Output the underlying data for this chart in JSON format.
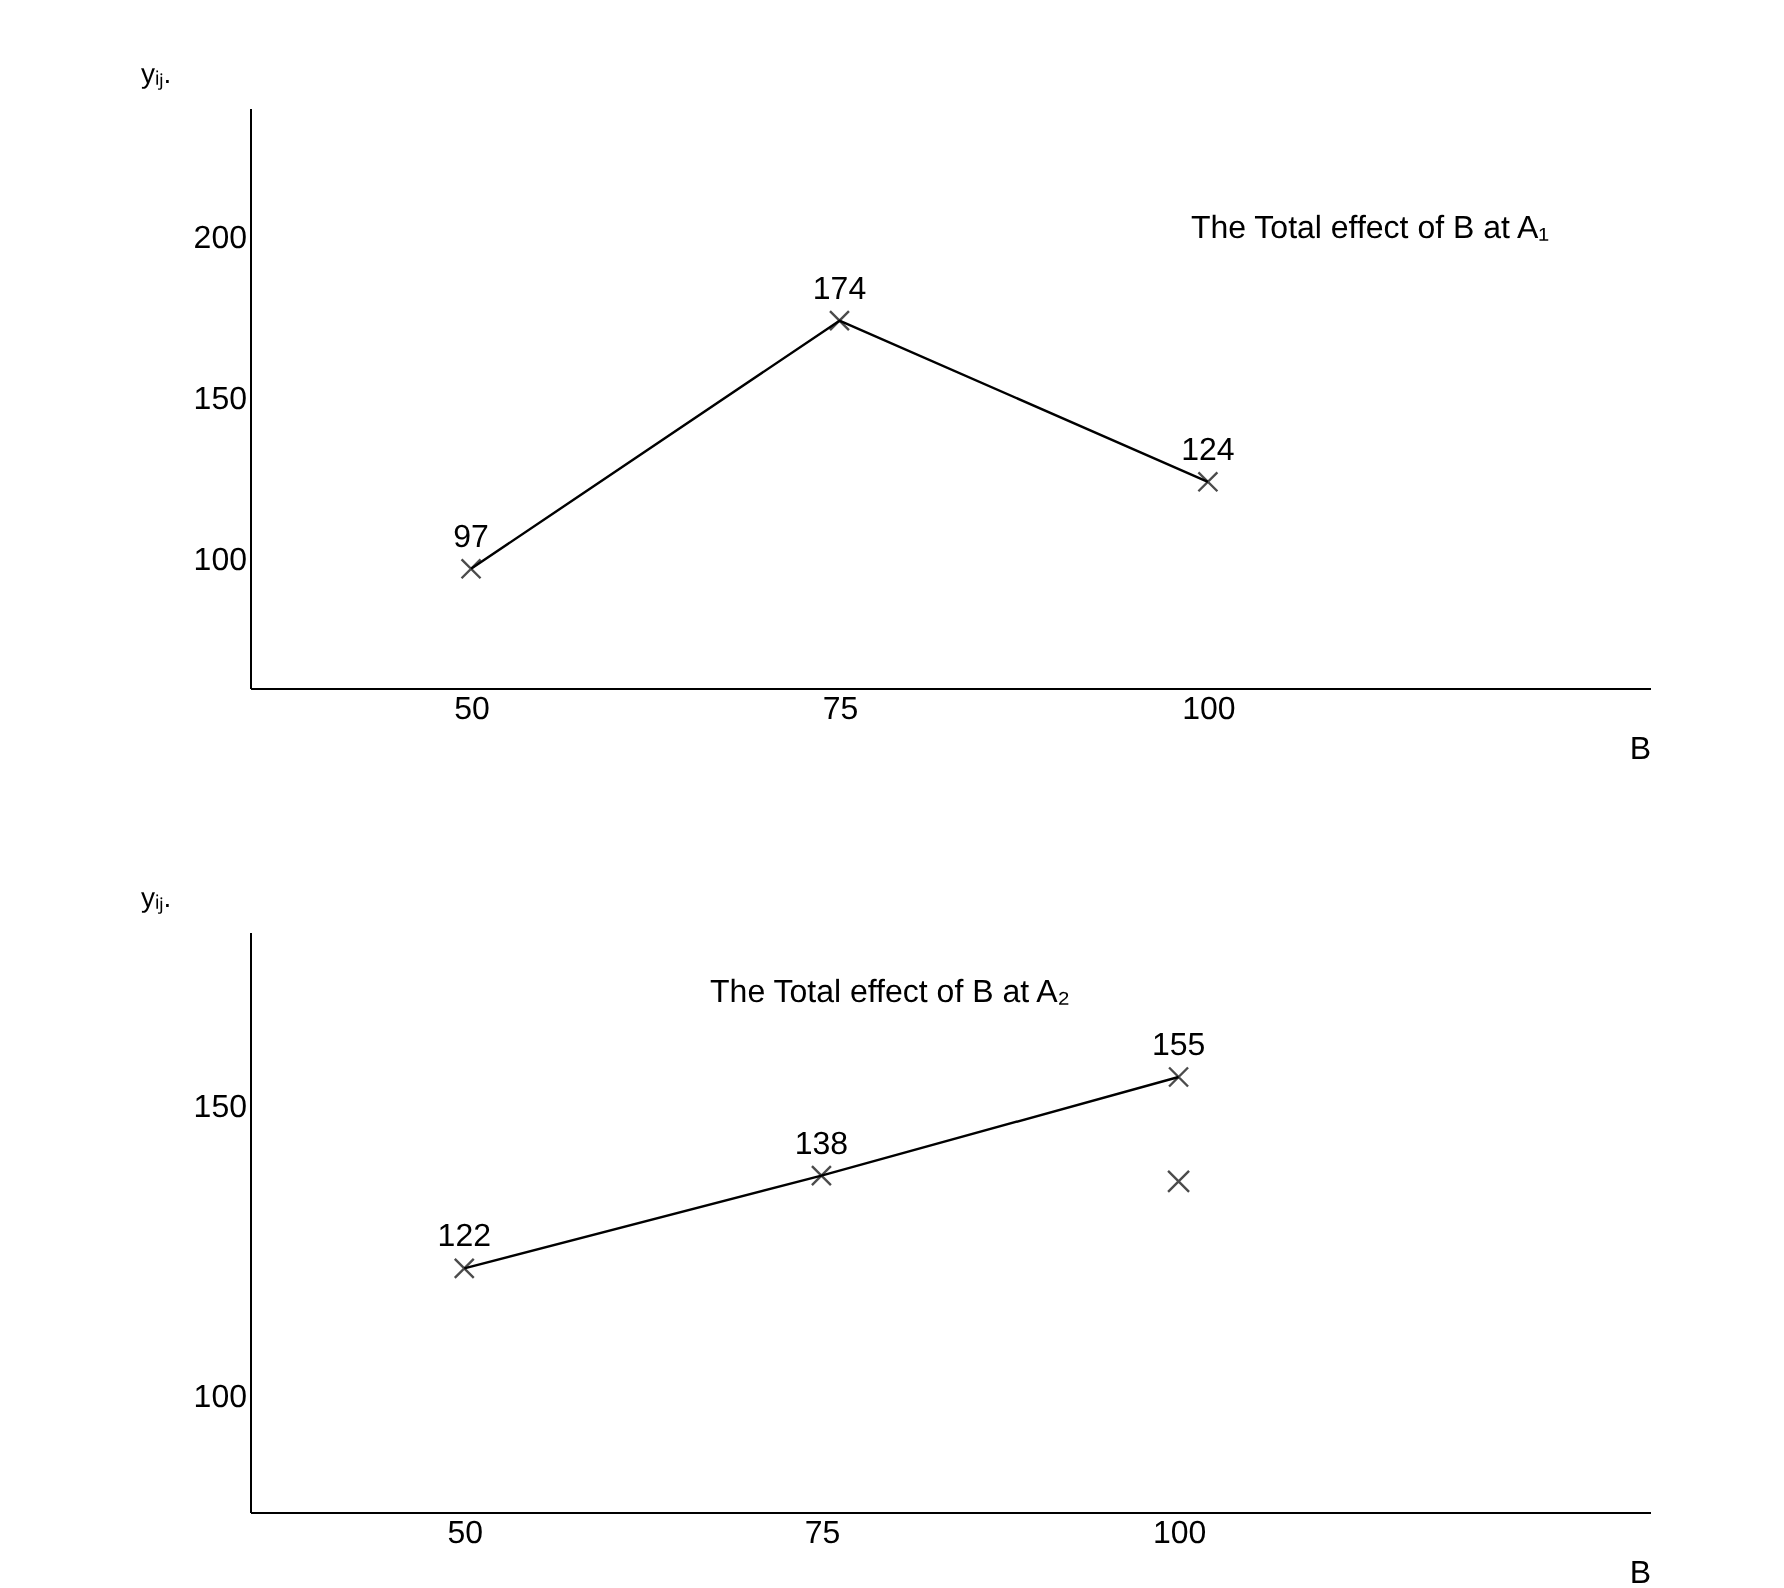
{
  "chart_data": [
    {
      "type": "line",
      "x": [
        50,
        75,
        100
      ],
      "xlim": [
        35,
        130
      ],
      "ylim": [
        60,
        240
      ],
      "xticks": [
        50,
        75,
        100
      ],
      "yticks": [
        100,
        150,
        200
      ],
      "xlabel": "B",
      "ylabel": "yᵢⱼ.",
      "marker": "cross",
      "data_labels": true,
      "grid": false,
      "series": [
        {
          "color": "#000000",
          "values": [
            97,
            174,
            124
          ]
        }
      ],
      "annotations": [
        "The Total effect of B at A₁"
      ]
    },
    {
      "type": "line",
      "x": [
        50,
        75,
        100
      ],
      "xlim": [
        35,
        133
      ],
      "ylim": [
        80,
        180
      ],
      "xticks": [
        50,
        75,
        100
      ],
      "yticks": [
        100,
        150
      ],
      "xlabel": "B",
      "ylabel": "yᵢⱼ.",
      "marker": "cross",
      "data_labels": true,
      "grid": false,
      "series": [
        {
          "color": "#000000",
          "values": [
            122,
            138,
            155
          ]
        },
        {
          "type": "scatter",
          "color": "#000000",
          "x": [
            100
          ],
          "values": [
            137
          ],
          "value_labels": [
            null
          ]
        }
      ],
      "annotations": [
        "The Total effect of B at A₂"
      ]
    }
  ]
}
